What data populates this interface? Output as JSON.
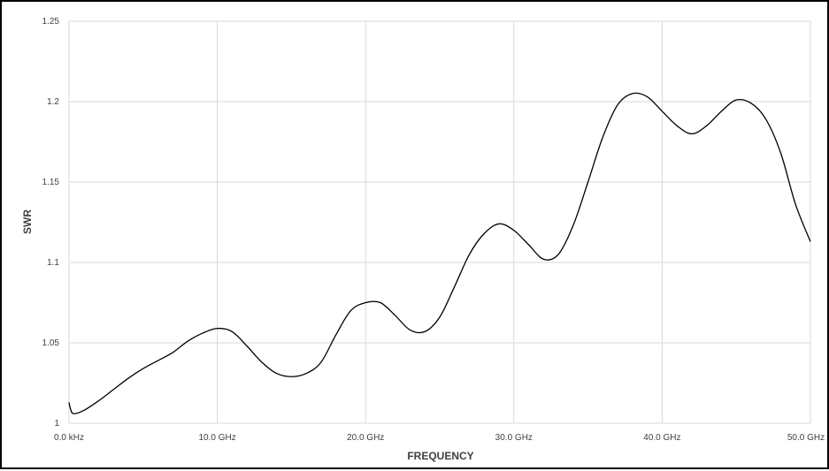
{
  "chart_data": {
    "type": "line",
    "title": "",
    "xlabel": "FREQUENCY",
    "ylabel": "SWR",
    "x_unit": "GHz",
    "xlim": [
      0,
      50
    ],
    "ylim": [
      1,
      1.25
    ],
    "x_ticks": [
      0,
      10,
      20,
      30,
      40,
      50
    ],
    "x_tick_labels": [
      "0.0 kHz",
      "10.0 GHz",
      "20.0 GHz",
      "30.0 GHz",
      "40.0 GHz",
      "50.0 GHz"
    ],
    "y_ticks": [
      1,
      1.05,
      1.1,
      1.15,
      1.2,
      1.25
    ],
    "y_tick_labels": [
      "1",
      "1.05",
      "1.1",
      "1.15",
      "1.2",
      "1.25"
    ],
    "grid": true,
    "legend": "none",
    "line_color": "#000000",
    "series": [
      {
        "x": [
          0,
          0.1,
          0.3,
          1,
          2,
          3,
          4,
          5,
          6,
          7,
          8,
          9,
          10,
          11,
          12,
          13,
          14,
          15,
          16,
          17,
          18,
          19,
          20,
          21,
          22,
          23,
          24,
          25,
          26,
          27,
          28,
          29,
          30,
          31,
          32,
          33,
          34,
          35,
          36,
          37,
          38,
          39,
          40,
          41,
          42,
          43,
          44,
          45,
          46,
          47,
          48,
          49,
          50
        ],
        "y": [
          1.013,
          1.009,
          1.006,
          1.008,
          1.014,
          1.021,
          1.028,
          1.034,
          1.039,
          1.044,
          1.051,
          1.056,
          1.059,
          1.057,
          1.048,
          1.038,
          1.031,
          1.029,
          1.031,
          1.038,
          1.055,
          1.07,
          1.075,
          1.075,
          1.067,
          1.058,
          1.057,
          1.066,
          1.085,
          1.105,
          1.118,
          1.124,
          1.12,
          1.111,
          1.102,
          1.105,
          1.123,
          1.15,
          1.178,
          1.198,
          1.205,
          1.203,
          1.194,
          1.185,
          1.18,
          1.185,
          1.194,
          1.201,
          1.199,
          1.189,
          1.168,
          1.136,
          1.113
        ]
      }
    ]
  }
}
